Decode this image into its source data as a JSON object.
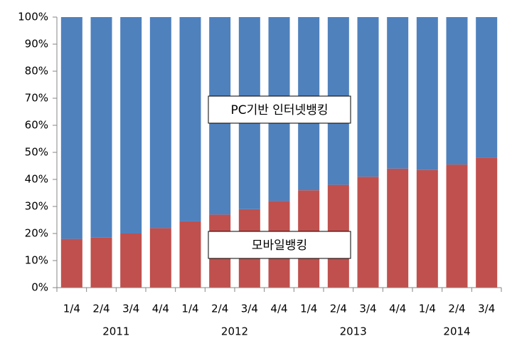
{
  "chart_data": {
    "type": "stacked_bar_100",
    "categories": [
      "1/4",
      "2/4",
      "3/4",
      "4/4",
      "1/4",
      "2/4",
      "3/4",
      "4/4",
      "1/4",
      "2/4",
      "3/4",
      "4/4",
      "1/4",
      "2/4",
      "3/4"
    ],
    "years": [
      "2011",
      null,
      null,
      null,
      "2012",
      null,
      null,
      null,
      "2013",
      null,
      null,
      null,
      "2014",
      null,
      null
    ],
    "series": [
      {
        "name": "모바일뱅킹",
        "color": "#c0504d",
        "values": [
          18,
          18.5,
          20,
          22,
          24.5,
          27,
          29,
          32,
          36,
          38,
          41,
          44,
          43.5,
          45.5,
          48
        ]
      },
      {
        "name": "PC기반 인터넷뱅킹",
        "color": "#4f81bd",
        "values": [
          82,
          81.5,
          80,
          78,
          75.5,
          73,
          71,
          68,
          64,
          62,
          59,
          56,
          56.5,
          54.5,
          52
        ]
      }
    ],
    "ylim": [
      0,
      100
    ],
    "yticks": [
      {
        "value": 0,
        "label": "0%"
      },
      {
        "value": 10,
        "label": "10%"
      },
      {
        "value": 20,
        "label": "20%"
      },
      {
        "value": 30,
        "label": "30%"
      },
      {
        "value": 40,
        "label": "40%"
      },
      {
        "value": 50,
        "label": "50%"
      },
      {
        "value": 60,
        "label": "60%"
      },
      {
        "value": 70,
        "label": "70%"
      },
      {
        "value": 80,
        "label": "80%"
      },
      {
        "value": 90,
        "label": "90%"
      },
      {
        "value": 100,
        "label": "100%"
      }
    ]
  }
}
